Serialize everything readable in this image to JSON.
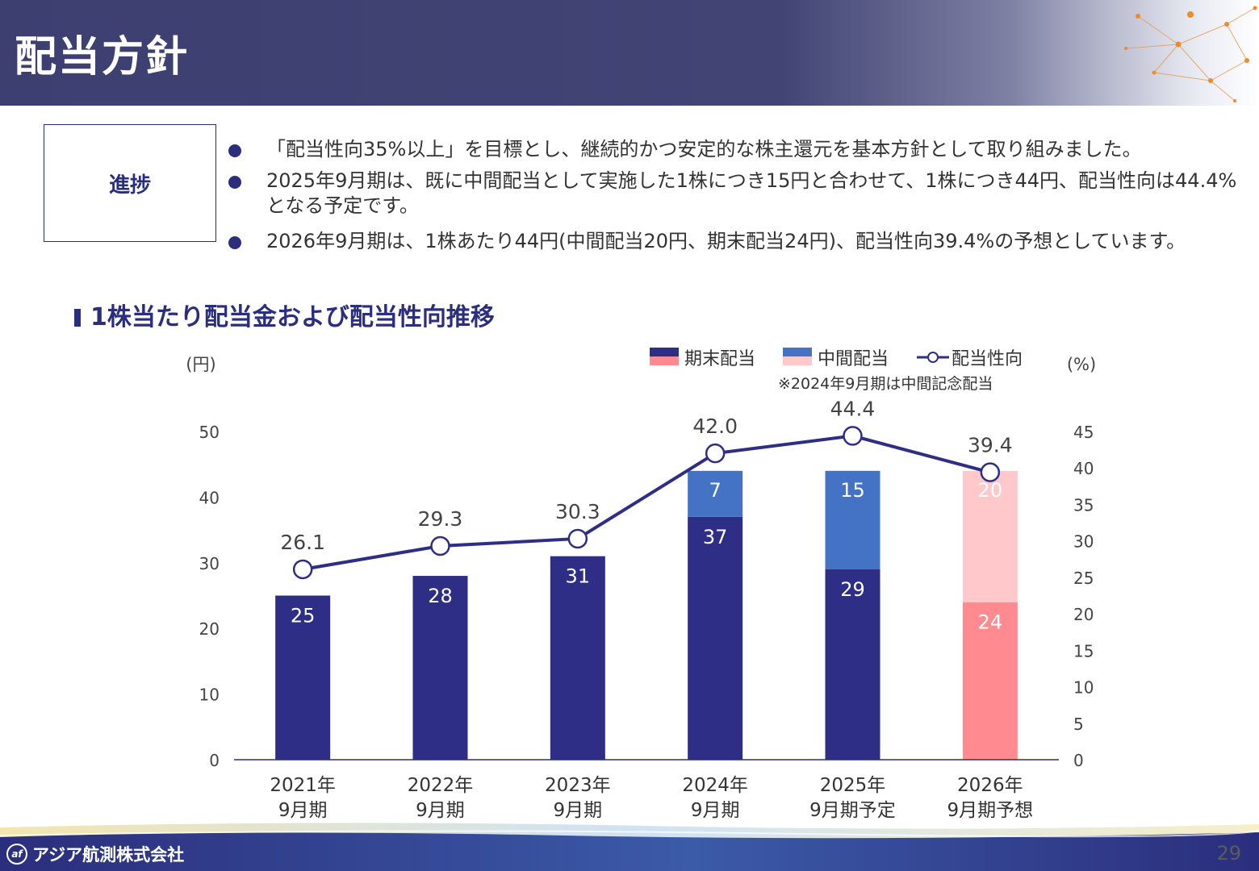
{
  "header": {
    "title": "配当方針"
  },
  "progress": {
    "label": "進捗",
    "bullets": [
      "「配当性向35%以上」を目標とし、継続的かつ安定的な株主還元を基本方針として取り組みました。",
      "2025年9月期は、既に中間配当として実施した1株につき15円と合わせて、1株につき44円、配当性向は44.4%となる予定です。",
      "2026年9月期は、1株あたり44円(中間配当20円、期末配当24円)、配当性向39.4%の予想としています。"
    ]
  },
  "section_title": "1株当たり配当金および配当性向推移",
  "chart_data": {
    "type": "bar",
    "stacked": true,
    "left_axis_unit": "(円)",
    "right_axis_unit": "(%)",
    "note": "※2024年9月期は中間記念配当",
    "categories": [
      [
        "2021年",
        "9月期"
      ],
      [
        "2022年",
        "9月期"
      ],
      [
        "2023年",
        "9月期"
      ],
      [
        "2024年",
        "9月期"
      ],
      [
        "2025年",
        "9月期予定"
      ],
      [
        "2026年",
        "9月期予想"
      ]
    ],
    "series": [
      {
        "name": "期末配当",
        "type": "bar",
        "axis": "left",
        "values": [
          25,
          28,
          31,
          37,
          29,
          24
        ],
        "colors": [
          "#2e2e87",
          "#2e2e87",
          "#2e2e87",
          "#2e2e87",
          "#2e2e87",
          "#ff8a8f"
        ]
      },
      {
        "name": "中間配当",
        "type": "bar",
        "axis": "left",
        "values": [
          null,
          null,
          null,
          7,
          15,
          20
        ],
        "colors": [
          "#4472c4",
          "#4472c4",
          "#4472c4",
          "#4472c4",
          "#4472c4",
          "#ffc8cb"
        ]
      },
      {
        "name": "配当性向",
        "type": "line",
        "axis": "right",
        "values": [
          26.1,
          29.3,
          30.3,
          42.0,
          44.4,
          39.4
        ],
        "labels": [
          "26.1",
          "29.3",
          "30.3",
          "42.0",
          "44.4",
          "39.4"
        ],
        "color": "#2e2e87"
      }
    ],
    "legend": {
      "position": "top-right",
      "items": [
        {
          "name": "期末配当",
          "colors": [
            "#2e2e87",
            "#ff8a8f"
          ]
        },
        {
          "name": "中間配当",
          "colors": [
            "#4472c4",
            "#ffc8cb"
          ]
        },
        {
          "name": "配当性向",
          "marker": "line-circle",
          "color": "#2e2e87"
        }
      ]
    },
    "left_axis": {
      "ylim": [
        0,
        50
      ],
      "ticks": [
        0,
        10,
        20,
        30,
        40,
        50
      ]
    },
    "right_axis": {
      "ylim": [
        0,
        45
      ],
      "ticks": [
        0,
        5,
        10,
        15,
        20,
        25,
        30,
        35,
        40,
        45
      ]
    },
    "grid": false
  },
  "footer": {
    "company": "アジア航測株式会社",
    "page_number": "29"
  }
}
